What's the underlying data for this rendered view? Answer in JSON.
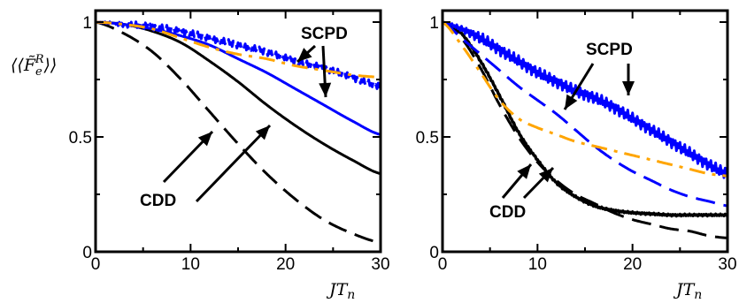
{
  "chart_data": [
    {
      "type": "line",
      "panel": "left",
      "xlabel": "JT_n",
      "ylabel": "⟨⟨F̃_e^R⟩⟩",
      "xlim": [
        0,
        30
      ],
      "ylim": [
        0,
        1.05
      ],
      "xticks": [
        "0",
        "10",
        "20",
        "30"
      ],
      "yticks": [
        "0",
        "0.5",
        "1"
      ],
      "grid": false,
      "colors": {
        "cdd": "#000000",
        "scpd_blue": "#0000ff",
        "scpd_orange": "#ffa500"
      },
      "annotations": [
        "SCPD",
        "CDD"
      ],
      "series": [
        {
          "style": "black-solid",
          "x": [
            0,
            3,
            6,
            9,
            12,
            15,
            18,
            21,
            24,
            27,
            30
          ],
          "y": [
            1.0,
            0.99,
            0.96,
            0.91,
            0.83,
            0.74,
            0.64,
            0.55,
            0.47,
            0.4,
            0.34
          ]
        },
        {
          "style": "black-dashed",
          "x": [
            0,
            3,
            6,
            9,
            12,
            15,
            18,
            21,
            24,
            27,
            30
          ],
          "y": [
            1.0,
            0.95,
            0.87,
            0.75,
            0.61,
            0.47,
            0.34,
            0.23,
            0.14,
            0.08,
            0.04
          ]
        },
        {
          "style": "blue-solid",
          "x": [
            0,
            3,
            6,
            9,
            12,
            15,
            18,
            21,
            24,
            27,
            30
          ],
          "y": [
            1.0,
            0.99,
            0.97,
            0.94,
            0.9,
            0.84,
            0.78,
            0.71,
            0.64,
            0.57,
            0.51
          ]
        },
        {
          "style": "blue-dashed-noisy",
          "x": [
            0,
            3,
            6,
            9,
            12,
            15,
            18,
            21,
            24,
            27,
            30
          ],
          "y": [
            1.0,
            0.99,
            0.98,
            0.96,
            0.93,
            0.9,
            0.87,
            0.83,
            0.8,
            0.76,
            0.72
          ]
        },
        {
          "style": "orange-dashdot",
          "x": [
            0,
            3,
            6,
            9,
            12,
            15,
            18,
            21,
            24,
            27,
            30
          ],
          "y": [
            1.0,
            0.99,
            0.97,
            0.93,
            0.89,
            0.86,
            0.84,
            0.81,
            0.79,
            0.77,
            0.76
          ]
        }
      ]
    },
    {
      "type": "line",
      "panel": "right",
      "xlabel": "JT_n",
      "xlim": [
        0,
        30
      ],
      "ylim": [
        0,
        1.05
      ],
      "xticks": [
        "0",
        "10",
        "20",
        "30"
      ],
      "yticks": [
        "0",
        "0.5",
        "1"
      ],
      "grid": false,
      "annotations": [
        "SCPD",
        "CDD"
      ],
      "series": [
        {
          "style": "black-solid-ripple",
          "x": [
            0,
            2,
            4,
            6,
            8,
            10,
            12,
            14,
            16,
            18,
            20,
            22,
            24,
            26,
            28,
            30
          ],
          "y": [
            1.0,
            0.95,
            0.83,
            0.68,
            0.52,
            0.4,
            0.3,
            0.24,
            0.2,
            0.18,
            0.17,
            0.165,
            0.16,
            0.16,
            0.16,
            0.16
          ]
        },
        {
          "style": "black-dashed",
          "x": [
            0,
            2,
            4,
            6,
            8,
            10,
            12,
            14,
            16,
            18,
            20,
            22,
            24,
            26,
            28,
            30
          ],
          "y": [
            1.0,
            0.93,
            0.8,
            0.64,
            0.5,
            0.39,
            0.31,
            0.25,
            0.21,
            0.17,
            0.14,
            0.12,
            0.1,
            0.09,
            0.07,
            0.06
          ]
        },
        {
          "style": "blue-solid-noisy",
          "x": [
            0,
            2,
            4,
            6,
            8,
            10,
            12,
            14,
            16,
            18,
            20,
            22,
            24,
            26,
            28,
            30
          ],
          "y": [
            1.0,
            0.97,
            0.93,
            0.88,
            0.83,
            0.78,
            0.74,
            0.7,
            0.67,
            0.63,
            0.58,
            0.53,
            0.48,
            0.43,
            0.38,
            0.34
          ]
        },
        {
          "style": "blue-dashed",
          "x": [
            0,
            2,
            4,
            6,
            8,
            10,
            12,
            14,
            16,
            18,
            20,
            22,
            24,
            26,
            28,
            30
          ],
          "y": [
            1.0,
            0.93,
            0.86,
            0.79,
            0.72,
            0.66,
            0.6,
            0.53,
            0.46,
            0.4,
            0.35,
            0.31,
            0.27,
            0.24,
            0.22,
            0.2
          ]
        },
        {
          "style": "orange-dashdot",
          "x": [
            0,
            2,
            4,
            6,
            8,
            10,
            12,
            14,
            16,
            18,
            20,
            22,
            24,
            26,
            28,
            30
          ],
          "y": [
            1.0,
            0.9,
            0.78,
            0.66,
            0.58,
            0.54,
            0.51,
            0.48,
            0.46,
            0.44,
            0.42,
            0.4,
            0.38,
            0.36,
            0.34,
            0.33
          ]
        }
      ]
    }
  ]
}
